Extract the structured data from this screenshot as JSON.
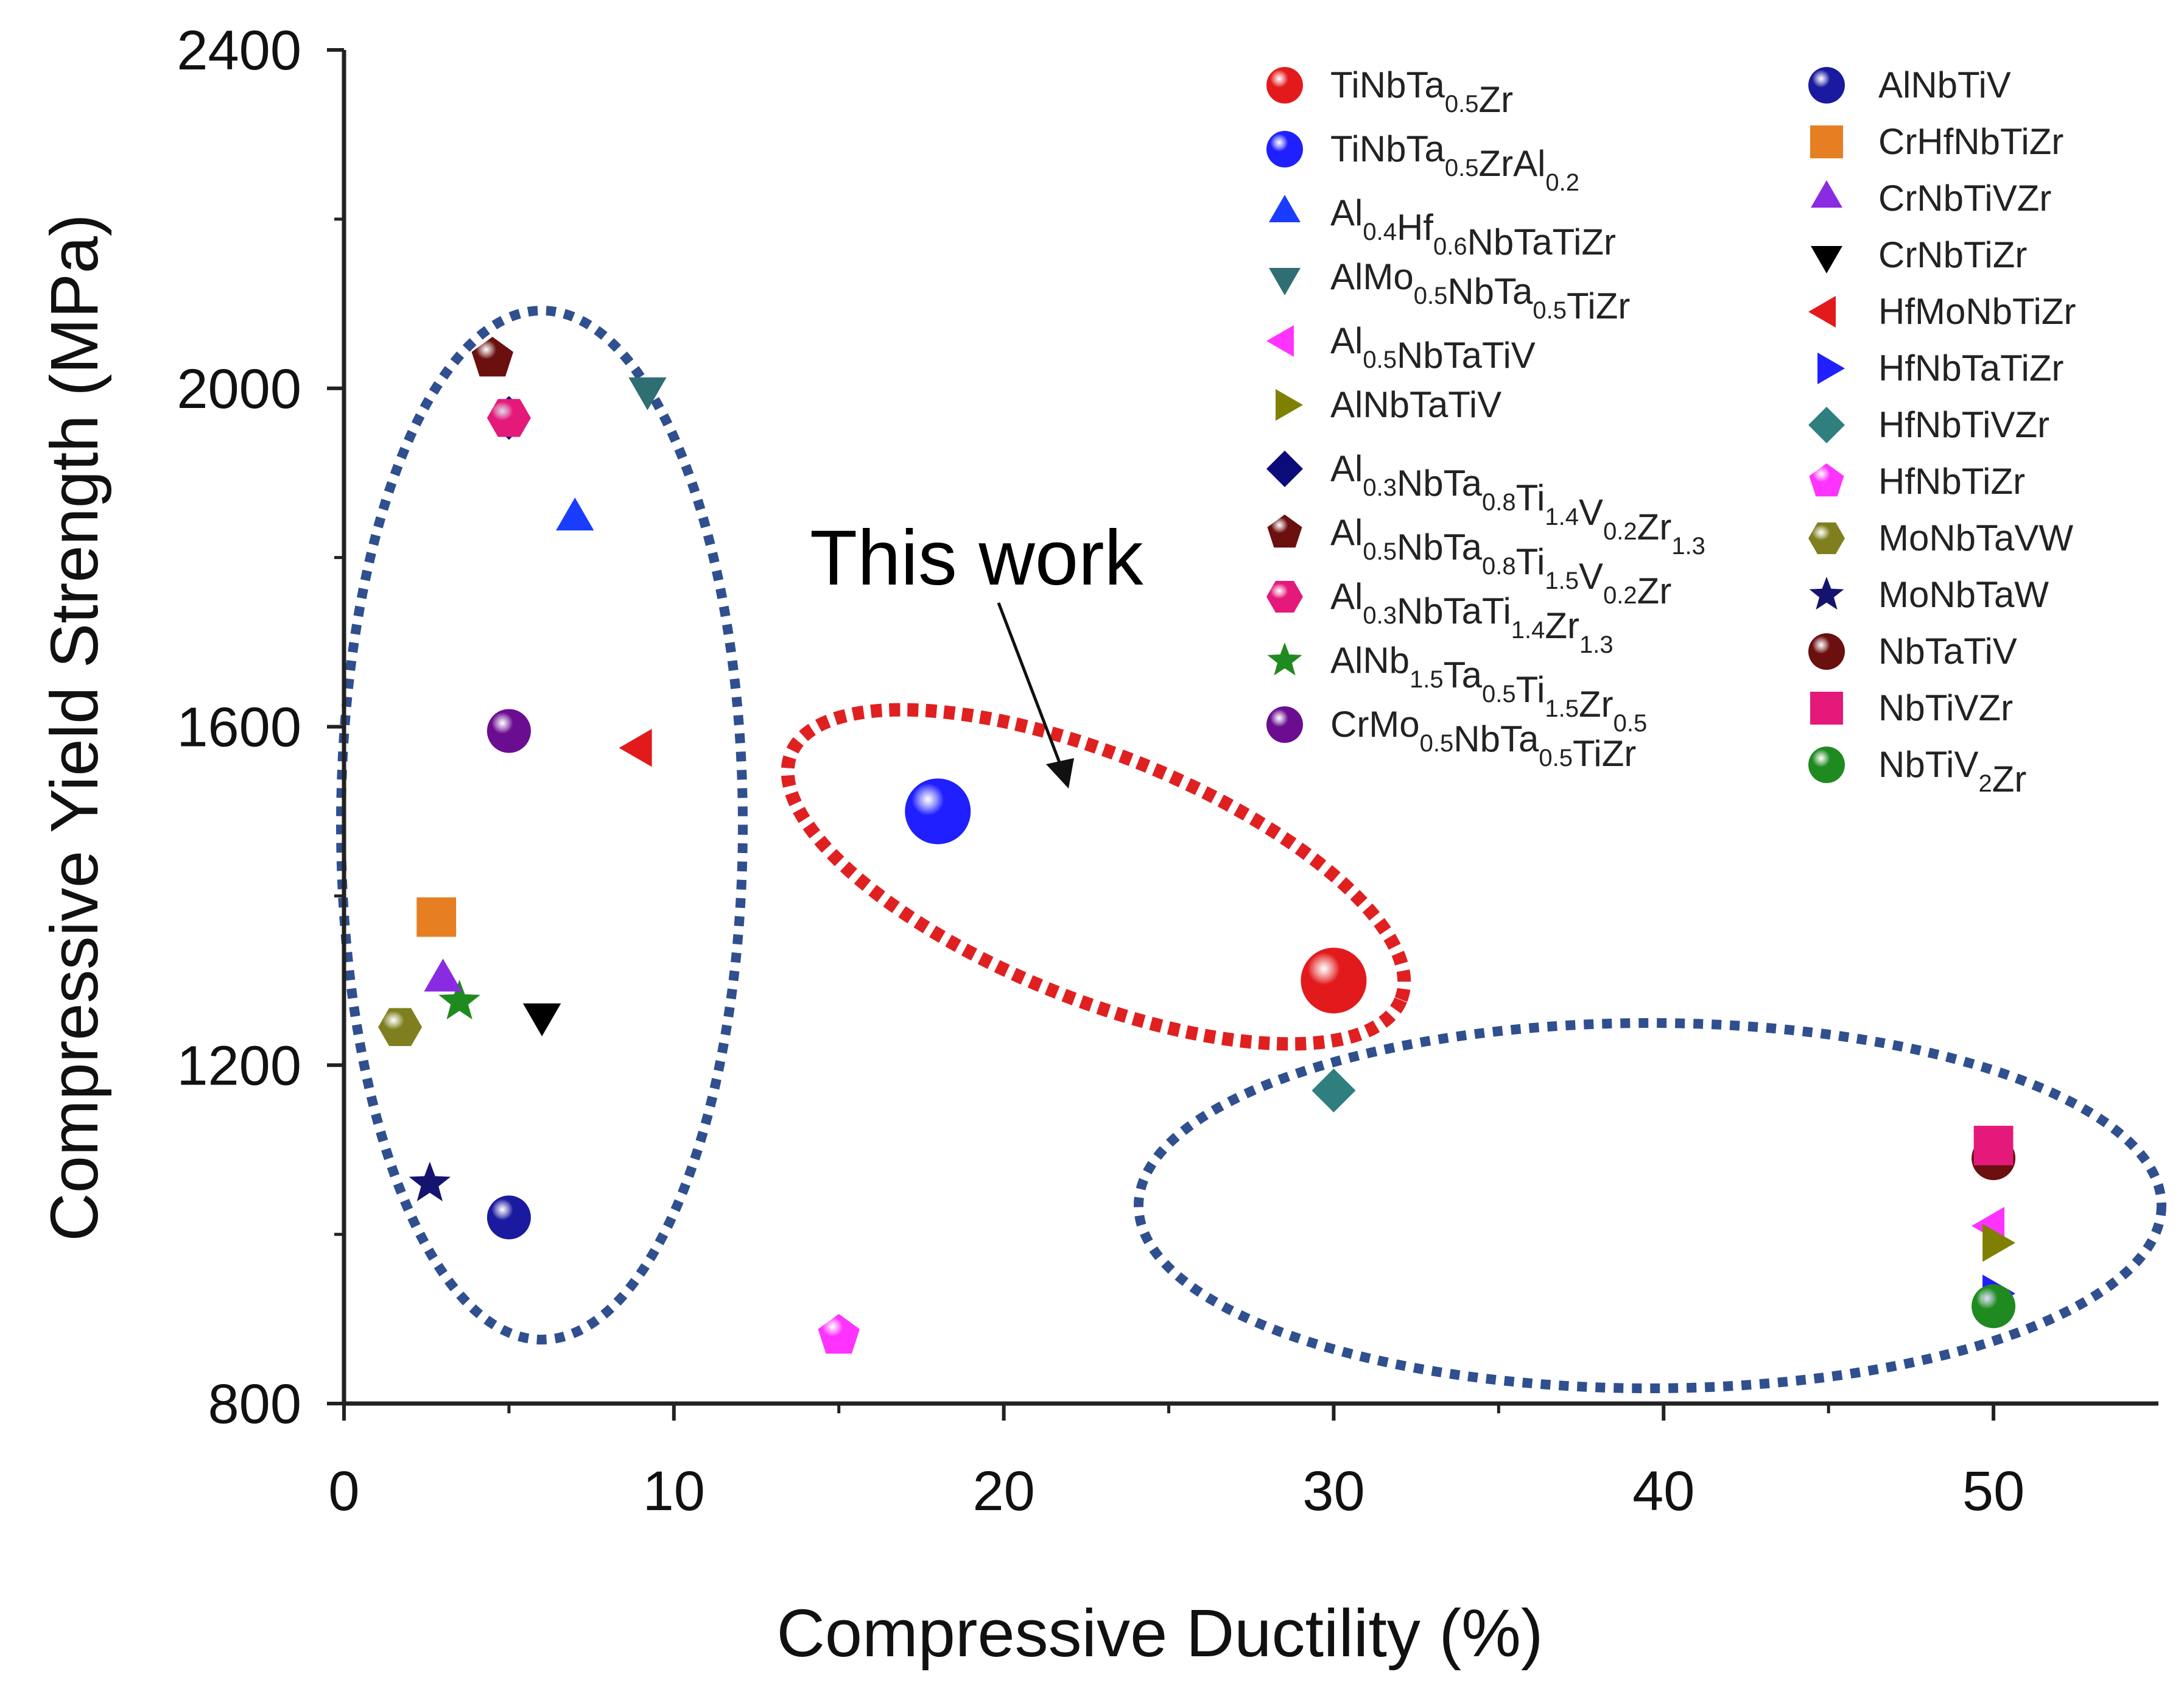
{
  "chart_data": {
    "type": "scatter",
    "title": "",
    "xlabel": "Compressive Ductility (%)",
    "ylabel": "Compressive Yield Strength (MPa)",
    "xlim": [
      0,
      55
    ],
    "ylim": [
      800,
      2400
    ],
    "xticks": [
      0,
      10,
      20,
      30,
      40,
      50
    ],
    "yticks": [
      800,
      1200,
      1600,
      2000,
      2400
    ],
    "legend_position": "top-right",
    "annotation": "This work",
    "series": [
      {
        "name": "TiNbTa0.5Zr",
        "label_main": [
          "TiNbTa",
          "Zr"
        ],
        "label_sub": [
          "0.5"
        ],
        "marker": "sphere",
        "color": "#e31a1c",
        "points": [
          [
            30,
            1300
          ]
        ]
      },
      {
        "name": "TiNbTa0.5ZrAl0.2",
        "label_main": [
          "TiNbTa",
          "ZrAl",
          ""
        ],
        "label_sub": [
          "0.5",
          "0.2"
        ],
        "marker": "sphere",
        "color": "#1f1fff",
        "points": [
          [
            18,
            1500
          ]
        ]
      },
      {
        "name": "Al0.4Hf0.6NbTaTiZr",
        "label_main": [
          "Al",
          "Hf",
          "NbTaTiZr"
        ],
        "label_sub": [
          "0.4",
          "0.6"
        ],
        "marker": "triangle-up",
        "color": "#1a3cff",
        "points": [
          [
            7,
            1845
          ]
        ]
      },
      {
        "name": "AlMo0.5NbTa0.5TiZr",
        "label_main": [
          "AlMo",
          "NbTa",
          "TiZr"
        ],
        "label_sub": [
          "0.5",
          "0.5"
        ],
        "marker": "triangle-down",
        "color": "#2f6e73",
        "points": [
          [
            9.2,
            2000
          ]
        ]
      },
      {
        "name": "Al0.5NbTaTiV",
        "label_main": [
          "Al",
          "NbTaTiV"
        ],
        "label_sub": [
          "0.5"
        ],
        "marker": "triangle-left",
        "color": "#ff33ff",
        "points": [
          [
            50,
            1010
          ]
        ]
      },
      {
        "name": "AlNbTaTiV",
        "label_main": [
          "AlNbTaTiV"
        ],
        "label_sub": [],
        "marker": "triangle-right",
        "color": "#808000",
        "points": [
          [
            50,
            990
          ]
        ]
      },
      {
        "name": "Al0.3NbTa0.8Ti1.4V0.2Zr1.3",
        "label_main": [
          "Al",
          "NbTa",
          "Ti",
          "V",
          "Zr",
          ""
        ],
        "label_sub": [
          "0.3",
          "0.8",
          "1.4",
          "0.2",
          "1.3"
        ],
        "marker": "diamond",
        "color": "#0b0b7a",
        "points": [
          [
            5,
            1965
          ]
        ]
      },
      {
        "name": "Al0.5NbTa0.8Ti1.5V0.2Zr",
        "label_main": [
          "Al",
          "NbTa",
          "Ti",
          "V",
          "Zr"
        ],
        "label_sub": [
          "0.5",
          "0.8",
          "1.5",
          "0.2"
        ],
        "marker": "pentagon",
        "color": "#6b0f0f",
        "points": [
          [
            4.5,
            2035
          ]
        ]
      },
      {
        "name": "Al0.3NbTaTi1.4Zr1.3",
        "label_main": [
          "Al",
          "NbTaTi",
          "Zr",
          ""
        ],
        "label_sub": [
          "0.3",
          "1.4",
          "1.3"
        ],
        "marker": "hexagon",
        "color": "#e5197a",
        "points": [
          [
            5,
            1965
          ]
        ]
      },
      {
        "name": "AlNb1.5Ta0.5Ti1.5Zr0.5",
        "label_main": [
          "AlNb",
          "Ta",
          "Ti",
          "Zr",
          ""
        ],
        "label_sub": [
          "1.5",
          "0.5",
          "1.5",
          "0.5"
        ],
        "marker": "star",
        "color": "#1f8a1f",
        "points": [
          [
            3.5,
            1275
          ]
        ]
      },
      {
        "name": "CrMo0.5NbTa0.5TiZr",
        "label_main": [
          "CrMo",
          "NbTa",
          "TiZr"
        ],
        "label_sub": [
          "0.5",
          "0.5"
        ],
        "marker": "sphere",
        "color": "#6a0d91",
        "points": [
          [
            5,
            1595
          ]
        ]
      },
      {
        "name": "AlNbTiV",
        "label_main": [
          "AlNbTiV"
        ],
        "label_sub": [],
        "marker": "sphere",
        "color": "#1a1aa0",
        "points": [
          [
            5,
            1020
          ]
        ]
      },
      {
        "name": "CrHfNbTiZr",
        "label_main": [
          "CrHfNbTiZr"
        ],
        "label_sub": [],
        "marker": "square",
        "color": "#e67e22",
        "points": [
          [
            2.8,
            1375
          ]
        ]
      },
      {
        "name": "CrNbTiVZr",
        "label_main": [
          "CrNbTiVZr"
        ],
        "label_sub": [],
        "marker": "triangle-up",
        "color": "#8a2be2",
        "points": [
          [
            3,
            1300
          ]
        ]
      },
      {
        "name": "CrNbTiZr",
        "label_main": [
          "CrNbTiZr"
        ],
        "label_sub": [],
        "marker": "triangle-down",
        "color": "#000000",
        "points": [
          [
            6,
            1260
          ]
        ]
      },
      {
        "name": "HfMoNbTiZr",
        "label_main": [
          "HfMoNbTiZr"
        ],
        "label_sub": [],
        "marker": "triangle-left",
        "color": "#e31a1c",
        "points": [
          [
            9,
            1575
          ]
        ]
      },
      {
        "name": "HfNbTaTiZr",
        "label_main": [
          "HfNbTaTiZr"
        ],
        "label_sub": [],
        "marker": "triangle-right",
        "color": "#1f1fff",
        "points": [
          [
            50,
            930
          ]
        ]
      },
      {
        "name": "HfNbTiVZr",
        "label_main": [
          "HfNbTiVZr"
        ],
        "label_sub": [],
        "marker": "diamond",
        "color": "#2f7f7f",
        "points": [
          [
            30,
            1170
          ]
        ]
      },
      {
        "name": "HfNbTiZr",
        "label_main": [
          "HfNbTiZr"
        ],
        "label_sub": [],
        "marker": "pentagon",
        "color": "#ff33ff",
        "points": [
          [
            15,
            880
          ]
        ]
      },
      {
        "name": "MoNbTaVW",
        "label_main": [
          "MoNbTaVW"
        ],
        "label_sub": [],
        "marker": "hexagon",
        "color": "#7f7f1f",
        "points": [
          [
            1.7,
            1245
          ]
        ]
      },
      {
        "name": "MoNbTaW",
        "label_main": [
          "MoNbTaW"
        ],
        "label_sub": [],
        "marker": "star",
        "color": "#141470",
        "points": [
          [
            2.6,
            1060
          ]
        ]
      },
      {
        "name": "NbTaTiV",
        "label_main": [
          "NbTaTiV"
        ],
        "label_sub": [],
        "marker": "sphere",
        "color": "#6b0f0f",
        "points": [
          [
            50,
            1090
          ]
        ]
      },
      {
        "name": "NbTiVZr",
        "label_main": [
          "NbTiVZr"
        ],
        "label_sub": [],
        "marker": "square",
        "color": "#e5197a",
        "points": [
          [
            50,
            1105
          ]
        ]
      },
      {
        "name": "NbTiV2Zr",
        "label_main": [
          "NbTiV",
          "Zr"
        ],
        "label_sub": [
          "2"
        ],
        "marker": "sphere",
        "color": "#1f8a1f",
        "points": [
          [
            50,
            915
          ]
        ]
      }
    ]
  }
}
